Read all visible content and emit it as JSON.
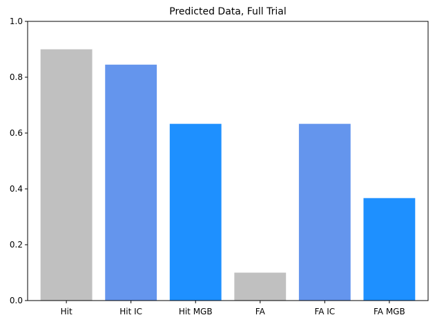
{
  "chart_data": {
    "type": "bar",
    "title": "Predicted Data, Full Trial",
    "xlabel": "",
    "ylabel": "",
    "categories": [
      "Hit",
      "Hit IC",
      "Hit MGB",
      "FA",
      "FA IC",
      "FA MGB"
    ],
    "values": [
      0.9,
      0.845,
      0.633,
      0.1,
      0.633,
      0.367
    ],
    "bar_colors": [
      "#c0c0c0",
      "#6495ed",
      "#1e90ff",
      "#c0c0c0",
      "#6495ed",
      "#1e90ff"
    ],
    "ylim": [
      0,
      1
    ],
    "yticks": [
      "0.0",
      "0.2",
      "0.4",
      "0.6",
      "0.8",
      "1.0"
    ],
    "grid": false,
    "legend": "none"
  }
}
